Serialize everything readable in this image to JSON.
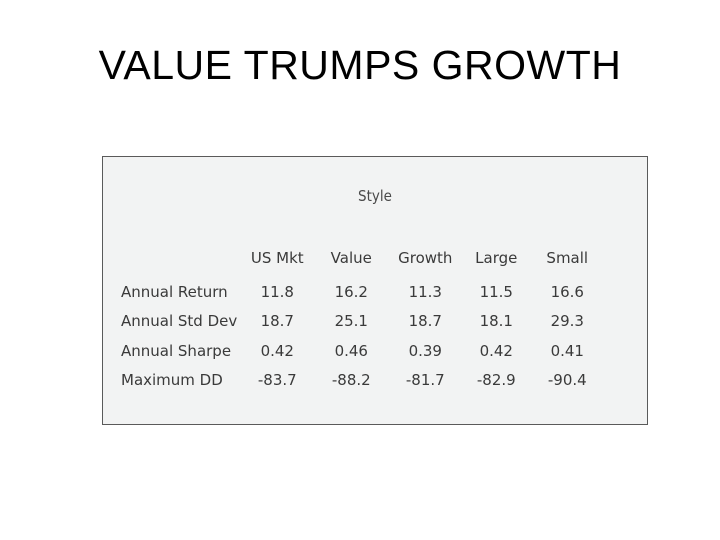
{
  "slide": {
    "title": "VALUE TRUMPS GROWTH"
  },
  "table": {
    "caption": "Style",
    "columns": [
      "US Mkt",
      "Value",
      "Growth",
      "Large",
      "Small"
    ],
    "rows": [
      {
        "label": "Annual Return",
        "values": [
          "11.8",
          "16.2",
          "11.3",
          "11.5",
          "16.6"
        ]
      },
      {
        "label": "Annual Std Dev",
        "values": [
          "18.7",
          "25.1",
          "18.7",
          "18.1",
          "29.3"
        ]
      },
      {
        "label": "Annual Sharpe",
        "values": [
          "0.42",
          "0.46",
          "0.39",
          "0.42",
          "0.41"
        ]
      },
      {
        "label": "Maximum DD",
        "values": [
          "-83.7",
          "-88.2",
          "-81.7",
          "-82.9",
          "-90.4"
        ]
      }
    ]
  }
}
